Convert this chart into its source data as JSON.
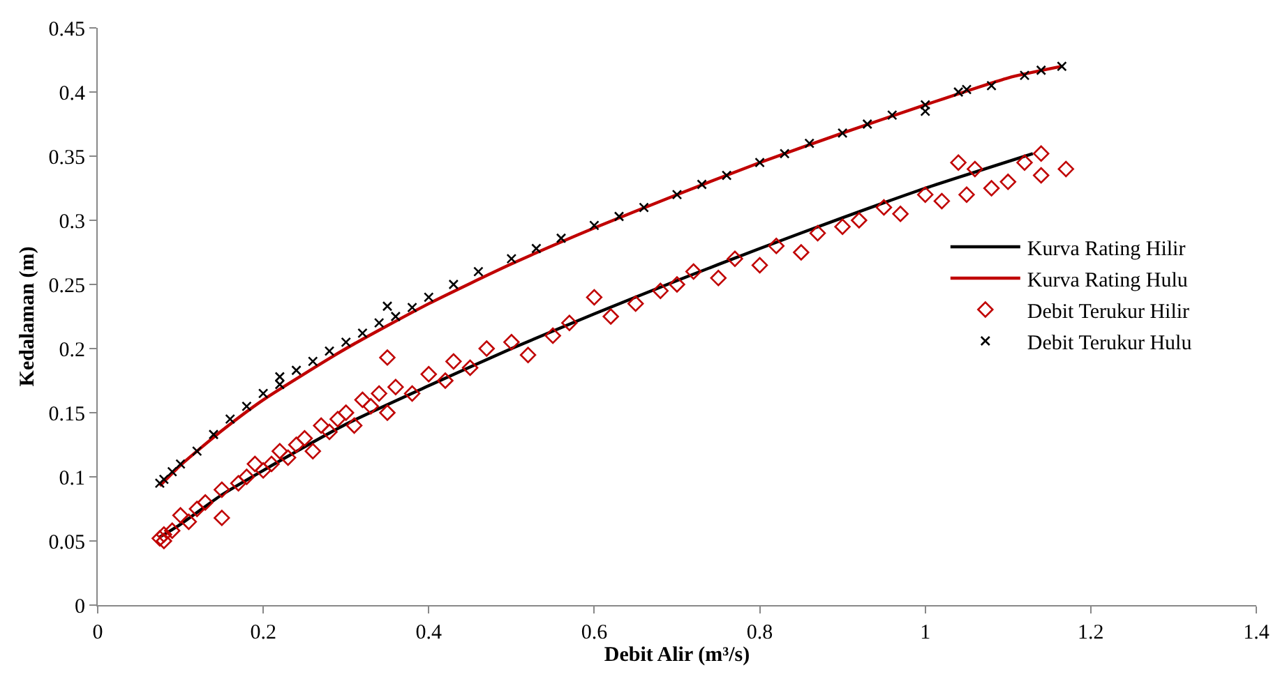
{
  "chart_data": {
    "type": "scatter",
    "xlabel": "Debit Alir (m³/s)",
    "ylabel": "Kedalaman (m)",
    "xlim": [
      0,
      1.4
    ],
    "xticks": [
      0,
      0.2,
      0.4,
      0.6,
      0.8,
      1,
      1.2,
      1.4
    ],
    "ylim": [
      0,
      0.45
    ],
    "yticks": [
      0,
      0.05,
      0.1,
      0.15,
      0.2,
      0.25,
      0.3,
      0.35,
      0.4,
      0.45
    ],
    "grid": false,
    "legend": "right",
    "series": [
      {
        "name": "Kurva Rating Hilir",
        "type": "line",
        "marker": "none",
        "line_style": "solid",
        "color": "#000000",
        "x": [
          0.075,
          0.1,
          0.15,
          0.2,
          0.3,
          0.4,
          0.5,
          0.6,
          0.7,
          0.8,
          0.9,
          1.0,
          1.13
        ],
        "values": [
          0.053,
          0.063,
          0.086,
          0.105,
          0.141,
          0.171,
          0.2,
          0.227,
          0.253,
          0.278,
          0.302,
          0.325,
          0.352
        ]
      },
      {
        "name": "Kurva Rating Hulu",
        "type": "line",
        "marker": "none",
        "line_style": "solid",
        "color": "#c00000",
        "x": [
          0.075,
          0.1,
          0.15,
          0.2,
          0.3,
          0.4,
          0.5,
          0.6,
          0.7,
          0.8,
          0.9,
          1.0,
          1.1,
          1.165
        ],
        "values": [
          0.093,
          0.109,
          0.136,
          0.16,
          0.2,
          0.235,
          0.266,
          0.294,
          0.32,
          0.345,
          0.368,
          0.39,
          0.411,
          0.42
        ]
      },
      {
        "name": "Debit Terukur Hilir",
        "type": "scatter",
        "marker": "diamond",
        "color": "#c00000",
        "x": [
          0.075,
          0.08,
          0.08,
          0.09,
          0.1,
          0.11,
          0.12,
          0.13,
          0.15,
          0.15,
          0.17,
          0.18,
          0.19,
          0.2,
          0.21,
          0.22,
          0.23,
          0.24,
          0.25,
          0.26,
          0.27,
          0.28,
          0.29,
          0.3,
          0.31,
          0.32,
          0.33,
          0.34,
          0.35,
          0.35,
          0.36,
          0.38,
          0.4,
          0.42,
          0.43,
          0.45,
          0.47,
          0.5,
          0.52,
          0.55,
          0.57,
          0.6,
          0.62,
          0.65,
          0.68,
          0.7,
          0.72,
          0.75,
          0.77,
          0.8,
          0.82,
          0.85,
          0.87,
          0.9,
          0.92,
          0.95,
          0.97,
          1.0,
          1.02,
          1.04,
          1.05,
          1.06,
          1.08,
          1.1,
          1.12,
          1.14,
          1.14,
          1.17
        ],
        "values": [
          0.052,
          0.055,
          0.05,
          0.058,
          0.07,
          0.065,
          0.075,
          0.08,
          0.09,
          0.068,
          0.095,
          0.1,
          0.11,
          0.105,
          0.11,
          0.12,
          0.115,
          0.125,
          0.13,
          0.12,
          0.14,
          0.135,
          0.145,
          0.15,
          0.14,
          0.16,
          0.155,
          0.165,
          0.193,
          0.15,
          0.17,
          0.165,
          0.18,
          0.175,
          0.19,
          0.185,
          0.2,
          0.205,
          0.195,
          0.21,
          0.22,
          0.24,
          0.225,
          0.235,
          0.245,
          0.25,
          0.26,
          0.255,
          0.27,
          0.265,
          0.28,
          0.275,
          0.29,
          0.295,
          0.3,
          0.31,
          0.305,
          0.32,
          0.315,
          0.345,
          0.32,
          0.34,
          0.325,
          0.33,
          0.345,
          0.352,
          0.335,
          0.34
        ]
      },
      {
        "name": "Debit Terukur Hulu",
        "type": "scatter",
        "marker": "cross",
        "color": "#000000",
        "x": [
          0.075,
          0.08,
          0.09,
          0.1,
          0.12,
          0.14,
          0.16,
          0.18,
          0.2,
          0.22,
          0.22,
          0.24,
          0.26,
          0.28,
          0.3,
          0.32,
          0.34,
          0.35,
          0.36,
          0.38,
          0.4,
          0.43,
          0.46,
          0.5,
          0.53,
          0.56,
          0.6,
          0.63,
          0.66,
          0.7,
          0.73,
          0.76,
          0.8,
          0.83,
          0.86,
          0.9,
          0.93,
          0.96,
          1.0,
          1.0,
          1.04,
          1.05,
          1.08,
          1.12,
          1.14,
          1.165
        ],
        "values": [
          0.095,
          0.098,
          0.104,
          0.11,
          0.12,
          0.133,
          0.145,
          0.155,
          0.165,
          0.172,
          0.178,
          0.183,
          0.19,
          0.198,
          0.205,
          0.212,
          0.22,
          0.233,
          0.225,
          0.232,
          0.24,
          0.25,
          0.26,
          0.27,
          0.278,
          0.286,
          0.296,
          0.303,
          0.31,
          0.32,
          0.328,
          0.335,
          0.345,
          0.352,
          0.36,
          0.368,
          0.375,
          0.382,
          0.39,
          0.385,
          0.4,
          0.402,
          0.405,
          0.413,
          0.417,
          0.42
        ]
      }
    ]
  }
}
